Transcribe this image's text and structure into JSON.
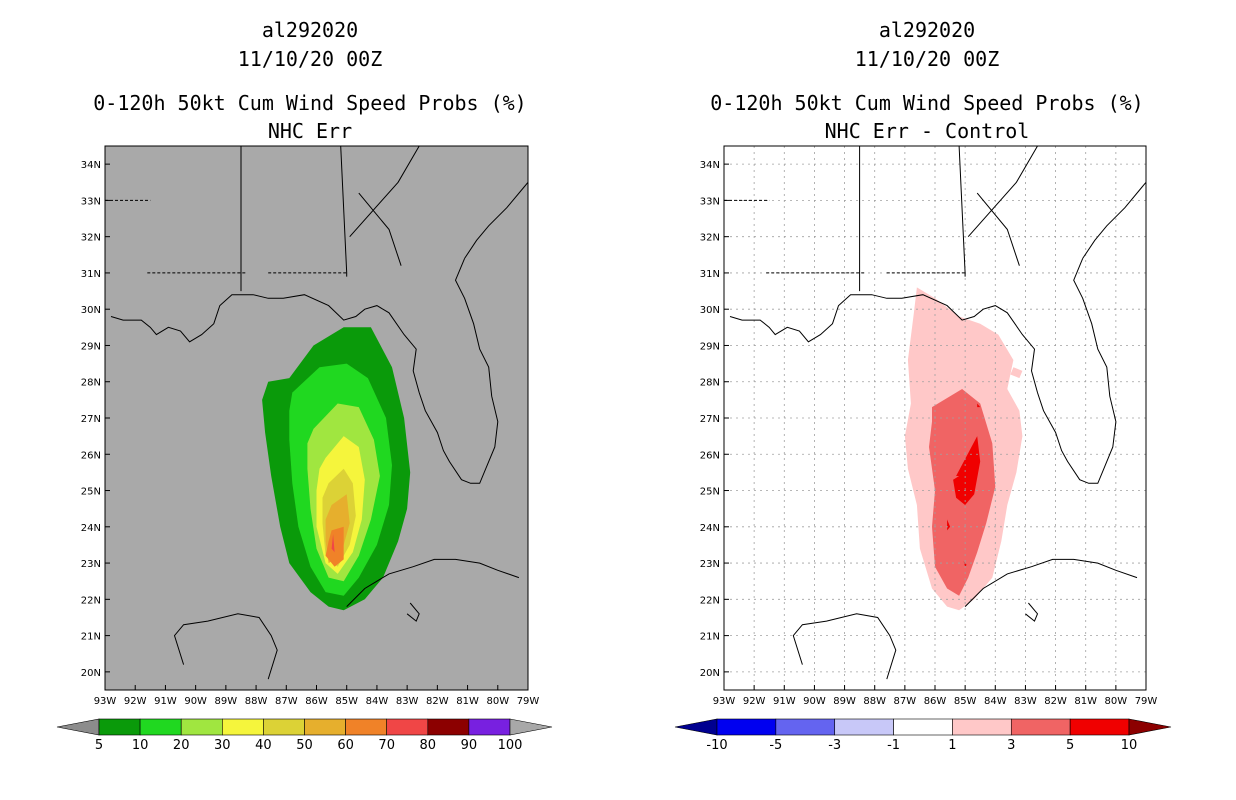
{
  "chart_data": [
    {
      "type": "filled-contour-map",
      "title_lines": [
        "al292020",
        "11/10/20 00Z",
        "0-120h 50kt Cum Wind Speed Probs (%)",
        "NHC Err"
      ],
      "x_ticks": [
        "93W",
        "92W",
        "91W",
        "90W",
        "89W",
        "88W",
        "87W",
        "86W",
        "85W",
        "84W",
        "83W",
        "82W",
        "81W",
        "80W",
        "79W"
      ],
      "y_ticks": [
        "34N",
        "33N",
        "32N",
        "31N",
        "30N",
        "29N",
        "28N",
        "27N",
        "26N",
        "25N",
        "24N",
        "23N",
        "22N",
        "21N",
        "20N"
      ],
      "lon_range": [
        -93,
        -79
      ],
      "lat_range": [
        19.5,
        34.5
      ],
      "colorbar": {
        "labels": [
          "5",
          "10",
          "20",
          "30",
          "40",
          "50",
          "60",
          "70",
          "80",
          "90",
          "100"
        ],
        "colors": [
          "#8c8c8c",
          "#0a9a0a",
          "#20d820",
          "#a0e640",
          "#f5f53c",
          "#dcd236",
          "#e6af2d",
          "#f08228",
          "#f04646",
          "#8c0000",
          "#7820e0",
          "#a8a8a8"
        ]
      },
      "background": "#a9a9a9",
      "contours": [
        {
          "level": 5,
          "color": "#0a9a0a",
          "lon": [
            -86.9,
            -86.1,
            -85.1,
            -84.2,
            -83.5,
            -83.1,
            -82.9,
            -83,
            -83.3,
            -83.8,
            -84.4,
            -85.1,
            -85.6,
            -86.2,
            -86.9,
            -87.2,
            -87.5,
            -87.7,
            -87.8,
            -87.6
          ],
          "lat": [
            28.1,
            29,
            29.5,
            29.5,
            28.4,
            27,
            25.5,
            24.5,
            23.6,
            22.6,
            22,
            21.7,
            21.8,
            22.2,
            23,
            24,
            25.4,
            26.6,
            27.5,
            28
          ]
        },
        {
          "level": 10,
          "color": "#20d820",
          "lon": [
            -86.8,
            -85.9,
            -85,
            -84.3,
            -83.7,
            -83.5,
            -83.6,
            -84,
            -84.6,
            -85.1,
            -85.7,
            -86.2,
            -86.6,
            -86.8,
            -86.9,
            -86.9
          ],
          "lat": [
            27.7,
            28.4,
            28.5,
            28.1,
            27,
            25.7,
            24.6,
            23.5,
            22.6,
            22.1,
            22.2,
            22.9,
            24,
            25.2,
            26.4,
            27.2
          ]
        },
        {
          "level": 20,
          "color": "#a0e640",
          "lon": [
            -86.1,
            -85.3,
            -84.6,
            -84.1,
            -83.9,
            -84.2,
            -84.6,
            -85.1,
            -85.6,
            -86,
            -86.2,
            -86.3,
            -86.3
          ],
          "lat": [
            26.7,
            27.4,
            27.3,
            26.4,
            25.4,
            24.2,
            23.2,
            22.5,
            22.6,
            23.4,
            24.5,
            25.6,
            26.3
          ]
        },
        {
          "level": 30,
          "color": "#f5f53c",
          "lon": [
            -85.7,
            -85.1,
            -84.6,
            -84.4,
            -84.5,
            -84.8,
            -85.3,
            -85.7,
            -86,
            -86,
            -85.9
          ],
          "lat": [
            25.9,
            26.5,
            26.2,
            25.3,
            24.2,
            23.3,
            22.7,
            23,
            24,
            25,
            25.6
          ]
        },
        {
          "level": 40,
          "color": "#dcd236",
          "lon": [
            -85.6,
            -85.1,
            -84.8,
            -84.7,
            -84.9,
            -85.3,
            -85.7,
            -85.8,
            -85.8
          ],
          "lat": [
            25.2,
            25.6,
            25.2,
            24.3,
            23.5,
            22.9,
            23.2,
            24.1,
            24.8
          ]
        },
        {
          "level": 50,
          "color": "#e6af2d",
          "lon": [
            -85.5,
            -85,
            -84.9,
            -85.2,
            -85.6,
            -85.7,
            -85.7
          ],
          "lat": [
            24.6,
            24.9,
            24.1,
            23.2,
            23,
            23.6,
            24.2
          ]
        },
        {
          "level": 60,
          "color": "#f08228",
          "lon": [
            -85.5,
            -85.1,
            -85.1,
            -85.4,
            -85.7,
            -85.6
          ],
          "lat": [
            23.9,
            24,
            23.1,
            22.9,
            23.2,
            23.6
          ]
        },
        {
          "level": 70,
          "color": "#f04646",
          "lon": [
            -85.45,
            -85.4,
            -85.5
          ],
          "lat": [
            23.8,
            23.3,
            23.4
          ]
        }
      ]
    },
    {
      "type": "filled-contour-map",
      "title_lines": [
        "al292020",
        "11/10/20 00Z",
        "0-120h 50kt Cum Wind Speed Probs (%)",
        "NHC Err - Control"
      ],
      "x_ticks": [
        "93W",
        "92W",
        "91W",
        "90W",
        "89W",
        "88W",
        "87W",
        "86W",
        "85W",
        "84W",
        "83W",
        "82W",
        "81W",
        "80W",
        "79W"
      ],
      "y_ticks": [
        "34N",
        "33N",
        "32N",
        "31N",
        "30N",
        "29N",
        "28N",
        "27N",
        "26N",
        "25N",
        "24N",
        "23N",
        "22N",
        "21N",
        "20N"
      ],
      "lon_range": [
        -93,
        -79
      ],
      "lat_range": [
        19.5,
        34.5
      ],
      "colorbar": {
        "labels": [
          "-10",
          "-5",
          "-3",
          "-1",
          "1",
          "3",
          "5",
          "10"
        ],
        "colors": [
          "#000090",
          "#0000f0",
          "#6464f0",
          "#c8c8f8",
          "#ffffff",
          "#ffc8c8",
          "#f06464",
          "#f00000",
          "#8c0000"
        ]
      },
      "background": "#ffffff",
      "grid": true,
      "contours": [
        {
          "level": 1,
          "color": "#ffc8c8",
          "lon": [
            -86.6,
            -86,
            -85.2,
            -84.5,
            -83.9,
            -83.4,
            -83.6,
            -83.2,
            -83.1,
            -83.3,
            -83.6,
            -83.8,
            -84.1,
            -84.7,
            -85.2,
            -85.6,
            -86.1,
            -86.5,
            -86.6,
            -86.9,
            -87,
            -86.8,
            -86.9,
            -86.7
          ],
          "lat": [
            30.6,
            30.3,
            29.8,
            29.6,
            29.3,
            28.6,
            27.8,
            27.2,
            26.5,
            25.5,
            24.6,
            23.6,
            22.6,
            22,
            21.7,
            21.8,
            22.3,
            23.4,
            24.6,
            25.6,
            26.5,
            27.4,
            28.6,
            29.9
          ]
        },
        {
          "level": 1,
          "color": "#ffc8c8",
          "lon": [
            -83.4,
            -83.1,
            -83.2,
            -83.5
          ],
          "lat": [
            28.4,
            28.3,
            28.1,
            28.2
          ]
        },
        {
          "level": 3,
          "color": "#f06464",
          "lon": [
            -86.1,
            -85.1,
            -84.5,
            -84.1,
            -84,
            -84.3,
            -84.6,
            -84.9,
            -85.2,
            -85.6,
            -86,
            -86.1,
            -86,
            -86.2,
            -86.1
          ],
          "lat": [
            27.3,
            27.8,
            27.4,
            26.3,
            25.1,
            24.1,
            23.3,
            22.6,
            22.1,
            22.3,
            22.9,
            24,
            25,
            26.2,
            26.9
          ]
        },
        {
          "level": 5,
          "color": "#f00000",
          "lon": [
            -85.3,
            -84.6,
            -84.5,
            -84.7,
            -85,
            -85.3,
            -85.4,
            -85.2
          ],
          "lat": [
            25.4,
            26.5,
            25.8,
            24.9,
            24.6,
            24.8,
            25.3,
            25.4
          ]
        },
        {
          "level": 5,
          "color": "#f00000",
          "lon": [
            -84.6,
            -84.5,
            -84.6
          ],
          "lat": [
            27.4,
            27.3,
            27.3
          ]
        },
        {
          "level": 5,
          "color": "#f00000",
          "lon": [
            -85.6,
            -85.5,
            -85.6
          ],
          "lat": [
            24.2,
            24,
            23.9
          ]
        },
        {
          "level": 5,
          "color": "#f00000",
          "lon": [
            -85.05,
            -84.95,
            -85
          ],
          "lat": [
            23.05,
            22.95,
            22.9
          ]
        }
      ]
    }
  ],
  "coastlines": [
    {
      "lon": [
        -92.8,
        -92.4,
        -91.8,
        -91.5,
        -91.3,
        -90.9,
        -90.5,
        -90.2,
        -89.8,
        -89.4,
        -89.2,
        -88.8,
        -88.1,
        -87.6,
        -87.1,
        -86.4,
        -85.6,
        -85.1,
        -84.7,
        -84.4,
        -84,
        -83.6,
        -83.1,
        -82.7,
        -82.8,
        -82.6,
        -82.4,
        -82,
        -81.8,
        -81.6,
        -81.2,
        -80.9,
        -80.6,
        -80.4,
        -80.1,
        -80,
        -80.2,
        -80.3,
        -80.6,
        -80.8,
        -81.1,
        -81.4,
        -81.1
      ],
      "lat": [
        29.8,
        29.7,
        29.7,
        29.5,
        29.3,
        29.5,
        29.4,
        29.1,
        29.3,
        29.6,
        30.1,
        30.4,
        30.4,
        30.3,
        30.3,
        30.4,
        30.1,
        29.7,
        29.8,
        30,
        30.1,
        29.9,
        29.3,
        28.9,
        28.3,
        27.7,
        27.2,
        26.6,
        26.1,
        25.8,
        25.3,
        25.2,
        25.2,
        25.6,
        26.2,
        26.9,
        27.6,
        28.4,
        28.9,
        29.6,
        30.3,
        30.8,
        31.4
      ]
    },
    {
      "lon": [
        -81.1,
        -80.7,
        -80.3,
        -79.7,
        -79.2,
        -79
      ],
      "lat": [
        31.4,
        31.9,
        32.3,
        32.8,
        33.3,
        33.5
      ]
    },
    {
      "lon": [
        -85,
        -84.4,
        -83.6,
        -82.8,
        -82.1,
        -81.4,
        -80.6,
        -80,
        -79.3
      ],
      "lat": [
        21.8,
        22.3,
        22.7,
        22.9,
        23.1,
        23.1,
        23,
        22.8,
        22.6
      ]
    },
    {
      "lon": [
        -82.9,
        -82.6,
        -82.7,
        -83
      ],
      "lat": [
        21.9,
        21.6,
        21.4,
        21.6
      ]
    },
    {
      "lon": [
        -90.4,
        -90.7,
        -90.4,
        -89.6,
        -88.6,
        -87.9,
        -87.5,
        -87.3,
        -87.6
      ],
      "lat": [
        20.2,
        21,
        21.3,
        21.4,
        21.6,
        21.5,
        21,
        20.6,
        19.8
      ]
    },
    {
      "lon": [
        -84.6,
        -83.6,
        -83.2
      ],
      "lat": [
        33.2,
        32.2,
        31.2
      ]
    },
    {
      "lon": [
        -88.5,
        -88.5
      ],
      "lat": [
        34.5,
        30.5
      ]
    },
    {
      "lon": [
        -85.2,
        -85,
        -85
      ],
      "lat": [
        34.5,
        31,
        30.9
      ]
    },
    {
      "lon": [
        -82.6,
        -83.3,
        -84.9
      ],
      "lat": [
        34.5,
        33.5,
        32
      ]
    }
  ],
  "borders": [
    {
      "lon": [
        -93,
        -91.5
      ],
      "lat": [
        33,
        33
      ]
    },
    {
      "lon": [
        -91.6,
        -89.7,
        -88.3
      ],
      "lat": [
        31,
        31,
        31
      ]
    },
    {
      "lon": [
        -87.6,
        -85
      ],
      "lat": [
        31,
        31
      ]
    }
  ]
}
